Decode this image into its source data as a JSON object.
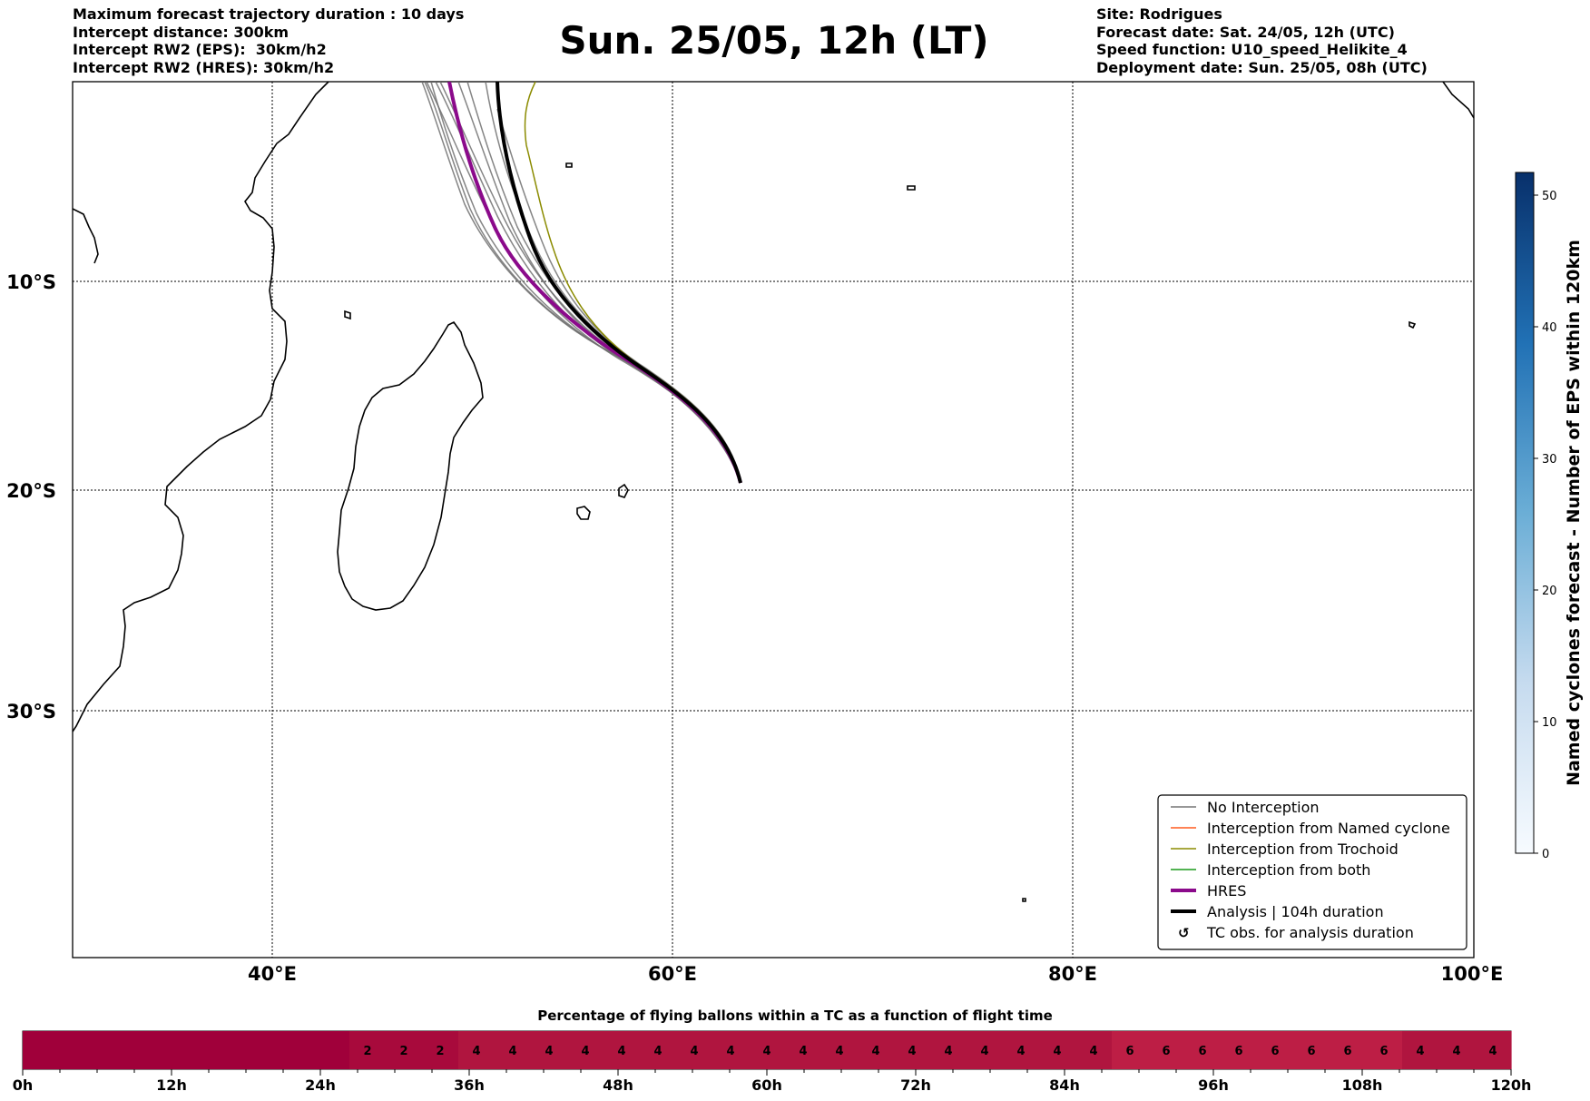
{
  "header": {
    "left": [
      "Maximum forecast trajectory duration : 10 days",
      "Intercept distance: 300km",
      "Intercept RW2 (EPS):  30km/h2",
      "Intercept RW2 (HRES): 30km/h2"
    ],
    "title": "Sun. 25/05, 12h (LT)",
    "right": [
      "Site: Rodrigues",
      "Forecast date: Sat. 24/05, 12h (UTC)",
      "Speed function: U10_speed_Helikite_4",
      "Deployment date: Sun. 25/05, 08h (UTC)"
    ]
  },
  "map": {
    "lon_labels": [
      "40°E",
      "60°E",
      "80°E",
      "100°E"
    ],
    "lat_labels": [
      "10°S",
      "20°S",
      "30°S"
    ]
  },
  "legend": {
    "items": [
      {
        "label": "No Interception",
        "color": "#777777"
      },
      {
        "label": "Interception from Named cyclone",
        "color": "#ff5a1f"
      },
      {
        "label": "Interception from Trochoid",
        "color": "#8b8b00"
      },
      {
        "label": "Interception from both",
        "color": "#1a9a1a"
      },
      {
        "label": "HRES",
        "color": "#8b0a8b"
      },
      {
        "label": "Analysis | 104h duration",
        "color": "#000000"
      },
      {
        "label": "TC obs. for analysis duration",
        "color": "#000000",
        "icon": "cyclone-symbol-icon"
      }
    ]
  },
  "colorbar": {
    "label": "Named cyclones forecast - Number of EPS within 120km",
    "ticks": [
      "0",
      "10",
      "20",
      "30",
      "40",
      "50"
    ],
    "color_low": "#f7fbff",
    "color_high": "#08306b"
  },
  "time_bar": {
    "title": "Percentage of flying ballons within a TC as a function of flight time",
    "ticks": [
      "0h",
      "12h",
      "24h",
      "36h",
      "48h",
      "60h",
      "72h",
      "84h",
      "96h",
      "108h",
      "120h"
    ],
    "cell_values": [
      "",
      "",
      "",
      "",
      "",
      "",
      "",
      "",
      "",
      "2",
      "2",
      "2",
      "4",
      "4",
      "4",
      "4",
      "4",
      "4",
      "4",
      "4",
      "4",
      "4",
      "4",
      "4",
      "4",
      "4",
      "4",
      "4",
      "4",
      "4",
      "6",
      "6",
      "6",
      "6",
      "6",
      "6",
      "6",
      "6",
      "4",
      "4",
      "4"
    ],
    "colors": {
      "0": "#a0003a",
      "2": "#a80a3c",
      "4": "#b0153f",
      "6": "#bd1e45"
    }
  },
  "chart_data": {
    "type": "map",
    "title": "Sun. 25/05, 12h (LT)",
    "site": "Rodrigues",
    "lon_ticks": [
      "40°E",
      "60°E",
      "80°E",
      "100°E"
    ],
    "lat_ticks": [
      "10°S",
      "20°S",
      "30°S"
    ],
    "trajectory_start": {
      "lon": 63.4,
      "lat": -19.7
    },
    "time_bar_percentages": [
      0,
      0,
      0,
      0,
      0,
      0,
      0,
      0,
      0,
      2,
      2,
      2,
      4,
      4,
      4,
      4,
      4,
      4,
      4,
      4,
      4,
      4,
      4,
      4,
      4,
      4,
      4,
      4,
      4,
      4,
      6,
      6,
      6,
      6,
      6,
      6,
      6,
      6,
      4,
      4,
      4
    ]
  }
}
